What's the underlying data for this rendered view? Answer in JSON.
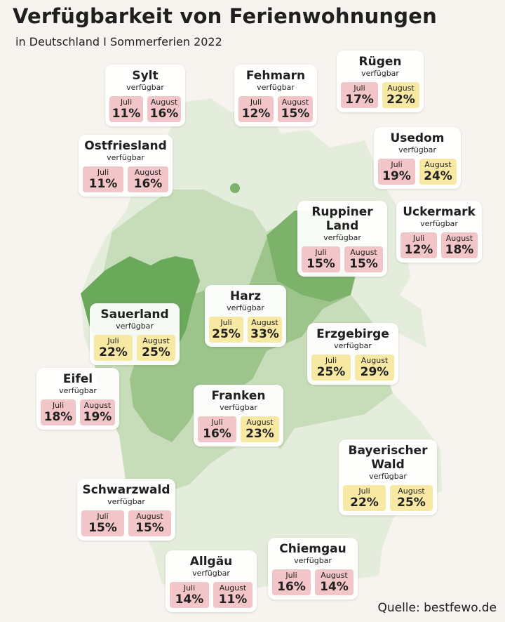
{
  "header": {
    "title": "Verfügbarkeit von Ferienwohnungen",
    "subtitle": "in Deutschland I Sommerferien 2022"
  },
  "source": "Quelle: bestfewo.de",
  "colors": {
    "background": "#f7f3ee",
    "map_light": "#e4ecdc",
    "map_mid": "#c7dcb8",
    "map_medium": "#9cc48b",
    "map_dark": "#6aa85a",
    "low_availability": "#f2c5c8",
    "high_availability": "#f7e9a4"
  },
  "legend": {
    "month1": "Juli",
    "month2": "August",
    "label": "verfügbar"
  },
  "regions": [
    {
      "name": "Sylt",
      "label": "verfügbar",
      "juli": "11%",
      "august": "16%",
      "juli_color": "pink",
      "august_color": "pink"
    },
    {
      "name": "Fehmarn",
      "label": "verfügbar",
      "juli": "12%",
      "august": "15%",
      "juli_color": "pink",
      "august_color": "pink"
    },
    {
      "name": "Rügen",
      "label": "verfügbar",
      "juli": "17%",
      "august": "22%",
      "juli_color": "pink",
      "august_color": "yellow"
    },
    {
      "name": "Ostfriesland",
      "label": "verfügbar",
      "juli": "11%",
      "august": "16%",
      "juli_color": "pink",
      "august_color": "pink"
    },
    {
      "name": "Usedom",
      "label": "verfügbar",
      "juli": "19%",
      "august": "24%",
      "juli_color": "pink",
      "august_color": "yellow"
    },
    {
      "name": "Ruppiner Land",
      "name_line1": "Ruppiner",
      "name_line2": "Land",
      "label": "verfügbar",
      "juli": "15%",
      "august": "15%",
      "juli_color": "pink",
      "august_color": "pink"
    },
    {
      "name": "Uckermark",
      "label": "verfügbar",
      "juli": "12%",
      "august": "18%",
      "juli_color": "pink",
      "august_color": "pink"
    },
    {
      "name": "Harz",
      "label": "verfügbar",
      "juli": "25%",
      "august": "33%",
      "juli_color": "yellow",
      "august_color": "yellow"
    },
    {
      "name": "Sauerland",
      "label": "verfügbar",
      "juli": "22%",
      "august": "25%",
      "juli_color": "yellow",
      "august_color": "yellow"
    },
    {
      "name": "Erzgebirge",
      "label": "verfügbar",
      "juli": "25%",
      "august": "29%",
      "juli_color": "yellow",
      "august_color": "yellow"
    },
    {
      "name": "Eifel",
      "label": "verfügbar",
      "juli": "18%",
      "august": "19%",
      "juli_color": "pink",
      "august_color": "pink"
    },
    {
      "name": "Franken",
      "label": "verfügbar",
      "juli": "16%",
      "august": "23%",
      "juli_color": "pink",
      "august_color": "yellow"
    },
    {
      "name": "Bayerischer Wald",
      "name_line1": "Bayerischer",
      "name_line2": "Wald",
      "label": "verfügbar",
      "juli": "22%",
      "august": "25%",
      "juli_color": "yellow",
      "august_color": "yellow"
    },
    {
      "name": "Schwarzwald",
      "label": "verfügbar",
      "juli": "15%",
      "august": "15%",
      "juli_color": "pink",
      "august_color": "pink"
    },
    {
      "name": "Chiemgau",
      "label": "verfügbar",
      "juli": "16%",
      "august": "14%",
      "juli_color": "pink",
      "august_color": "pink"
    },
    {
      "name": "Allgäu",
      "label": "verfügbar",
      "juli": "14%",
      "august": "11%",
      "juli_color": "pink",
      "august_color": "pink"
    }
  ]
}
